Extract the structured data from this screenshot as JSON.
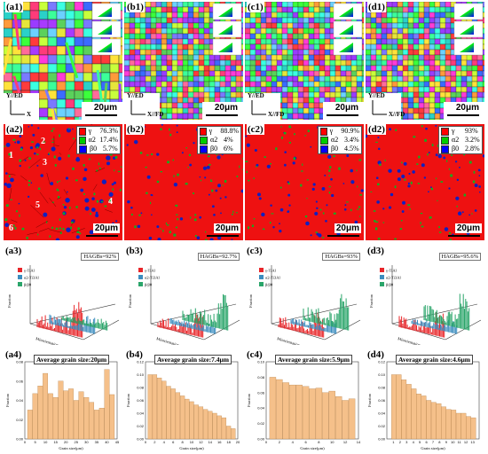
{
  "figure": {
    "columns": [
      {
        "id": "a",
        "map_label": "(a1)",
        "phase_label": "(a2)",
        "mis_label": "(a3)",
        "hist_label": "(a4)",
        "scale_bar": "20μm",
        "axis_y": "Y//ED",
        "axis_x": "X",
        "map_seed": 11,
        "phase_seed": 21,
        "map_style": "coarse",
        "hagb": "HAGBs=92%",
        "avg_grain": "Average grain size:20μm",
        "zones": [
          "1",
          "2",
          "3",
          "4",
          "5",
          "6"
        ],
        "phases": [
          {
            "symbol": "γ",
            "percent": "76.3%",
            "color": "#ff0000"
          },
          {
            "symbol": "α2",
            "percent": "17.4%",
            "color": "#00cc00"
          },
          {
            "symbol": "β0",
            "percent": "5.7%",
            "color": "#0000ff"
          }
        ]
      },
      {
        "id": "b",
        "map_label": "(b1)",
        "phase_label": "(b2)",
        "mis_label": "(b3)",
        "hist_label": "(b4)",
        "scale_bar": "20μm",
        "axis_y": "Y//ED",
        "axis_x": "X//FD",
        "map_seed": 12,
        "phase_seed": 22,
        "map_style": "fine",
        "hagb": "HAGBs=92.7%",
        "avg_grain": "Average grain size:7.4μm",
        "zones": [],
        "phases": [
          {
            "symbol": "γ",
            "percent": "88.8%",
            "color": "#ff0000"
          },
          {
            "symbol": "α2",
            "percent": "4%",
            "color": "#00cc00"
          },
          {
            "symbol": "β0",
            "percent": "6%",
            "color": "#0000ff"
          }
        ]
      },
      {
        "id": "c",
        "map_label": "(c1)",
        "phase_label": "(c2)",
        "mis_label": "(c3)",
        "hist_label": "(c4)",
        "scale_bar": "20μm",
        "axis_y": "Y//ED",
        "axis_x": "X//FD",
        "map_seed": 13,
        "phase_seed": 23,
        "map_style": "fine",
        "hagb": "HAGBs=93%",
        "avg_grain": "Average grain size:5.9μm",
        "zones": [],
        "phases": [
          {
            "symbol": "γ",
            "percent": "90.9%",
            "color": "#ff0000"
          },
          {
            "symbol": "α2",
            "percent": "3.4%",
            "color": "#00cc00"
          },
          {
            "symbol": "β0",
            "percent": "4.5%",
            "color": "#0000ff"
          }
        ]
      },
      {
        "id": "d",
        "map_label": "(d1)",
        "phase_label": "(d2)",
        "mis_label": "(d3)",
        "hist_label": "(d4)",
        "scale_bar": "20μm",
        "axis_y": "Y//ED",
        "axis_x": "X//FD",
        "map_seed": 14,
        "phase_seed": 24,
        "map_style": "fine",
        "hagb": "HAGBs=95.6%",
        "avg_grain": "Average grain size:4.6μm",
        "zones": [],
        "phases": [
          {
            "symbol": "γ",
            "percent": "93%",
            "color": "#ff0000"
          },
          {
            "symbol": "α2",
            "percent": "3.2%",
            "color": "#00cc00"
          },
          {
            "symbol": "β0",
            "percent": "2.8%",
            "color": "#0000ff"
          }
        ]
      }
    ],
    "misorientation_legend": [
      "γ-TiAl",
      "α2-Ti3Al",
      "β/β0"
    ],
    "misorientation_colors": [
      "#e8262a",
      "#3c8dbf",
      "#2aa56a"
    ],
    "misorientation_axis": {
      "y": "Fraction",
      "x": "Misorientation angle(°)"
    },
    "hist_axis": {
      "y": "Fraction",
      "x": "Grain size(μm)"
    },
    "hist_bar_color": "#f5c08a"
  },
  "chart_data": [
    {
      "type": "bar",
      "panel": "(a4)",
      "title": "Average grain size:20μm",
      "xlabel": "Grain size(μm)",
      "ylabel": "Fraction",
      "xlim": [
        0,
        45
      ],
      "ylim": [
        0,
        0.08
      ],
      "xticks": [
        "0",
        "5",
        "10",
        "15",
        "20",
        "25",
        "30",
        "35",
        "40",
        "45"
      ],
      "yticks": [
        "0.00",
        "0.02",
        "0.04",
        "0.06",
        "0.08"
      ],
      "x": [
        2.5,
        5,
        7.5,
        10,
        12.5,
        15,
        17.5,
        20,
        22.5,
        25,
        27.5,
        30,
        32.5,
        35,
        37.5,
        40,
        42.5
      ],
      "values": [
        0.03,
        0.047,
        0.055,
        0.068,
        0.047,
        0.043,
        0.06,
        0.05,
        0.052,
        0.04,
        0.049,
        0.043,
        0.038,
        0.03,
        0.032,
        0.072,
        0.046
      ]
    },
    {
      "type": "bar",
      "panel": "(b4)",
      "title": "Average grain size:7.4μm",
      "xlabel": "Grain size(μm)",
      "ylabel": "Fraction",
      "xlim": [
        0,
        20
      ],
      "ylim": [
        0,
        0.12
      ],
      "xticks": [
        "0",
        "2",
        "4",
        "6",
        "8",
        "10",
        "12",
        "14",
        "16",
        "18",
        "20"
      ],
      "yticks": [
        "0.00",
        "0.02",
        "0.04",
        "0.06",
        "0.08",
        "0.10",
        "0.12"
      ],
      "x": [
        1,
        2,
        3,
        4,
        5,
        6,
        7,
        8,
        9,
        10,
        11,
        12,
        13,
        14,
        15,
        16,
        17,
        18,
        19
      ],
      "values": [
        0.1,
        0.1,
        0.095,
        0.09,
        0.082,
        0.078,
        0.072,
        0.067,
        0.062,
        0.058,
        0.053,
        0.05,
        0.046,
        0.043,
        0.04,
        0.036,
        0.033,
        0.02,
        0.016
      ]
    },
    {
      "type": "bar",
      "panel": "(c4)",
      "title": "Average grain size:5.9μm",
      "xlabel": "Grain size(μm)",
      "ylabel": "Fraction",
      "xlim": [
        0,
        14
      ],
      "ylim": [
        0,
        0.1
      ],
      "xticks": [
        "0",
        "2",
        "4",
        "6",
        "8",
        "10",
        "12",
        "14"
      ],
      "yticks": [
        "0.00",
        "0.02",
        "0.04",
        "0.06",
        "0.08",
        "0.10"
      ],
      "x": [
        1,
        2,
        3,
        4,
        5,
        6,
        7,
        8,
        9,
        10,
        11,
        12,
        13
      ],
      "values": [
        0.08,
        0.077,
        0.073,
        0.07,
        0.07,
        0.068,
        0.065,
        0.066,
        0.06,
        0.062,
        0.055,
        0.05,
        0.052
      ]
    },
    {
      "type": "bar",
      "panel": "(d4)",
      "title": "Average grain size:4.6μm",
      "xlabel": "Grain size(μm)",
      "ylabel": "Fraction",
      "xlim": [
        0,
        13
      ],
      "ylim": [
        0,
        0.12
      ],
      "xticks": [
        "1",
        "2",
        "3",
        "4",
        "5",
        "6",
        "7",
        "8",
        "9",
        "10",
        "11",
        "12",
        "13"
      ],
      "yticks": [
        "0.00",
        "0.02",
        "0.04",
        "0.06",
        "0.08",
        "0.10",
        "0.12"
      ],
      "x": [
        1,
        1.7,
        2.4,
        3.1,
        3.8,
        4.5,
        5.2,
        5.9,
        6.6,
        7.3,
        8,
        8.7,
        9.4,
        10.1,
        10.8,
        11.5,
        12.2
      ],
      "values": [
        0.1,
        0.1,
        0.092,
        0.085,
        0.078,
        0.07,
        0.067,
        0.06,
        0.057,
        0.055,
        0.05,
        0.046,
        0.045,
        0.04,
        0.04,
        0.035,
        0.033
      ]
    }
  ]
}
